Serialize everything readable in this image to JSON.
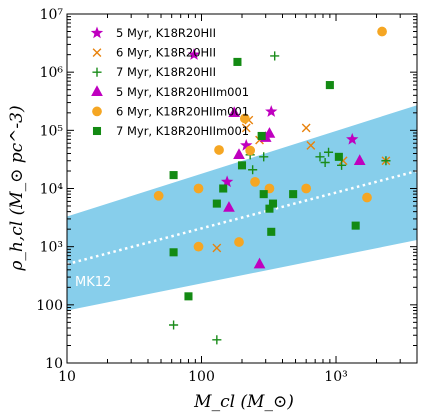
{
  "chart_data": {
    "type": "scatter",
    "xscale": "log",
    "yscale": "log",
    "xlim": [
      10,
      4000
    ],
    "ylim": [
      10,
      10000000
    ],
    "xlabel": "M_cl (M_⊙)",
    "ylabel": "ρ_h,cl (M_⊙ pc^-3)",
    "x_ticks": [
      {
        "value": 10,
        "label": "10"
      },
      {
        "value": 100,
        "label": "100"
      },
      {
        "value": 1000,
        "label": "10³"
      }
    ],
    "y_ticks": [
      {
        "value": 10,
        "label": "10"
      },
      {
        "value": 100,
        "label": "100"
      },
      {
        "value": 1000,
        "label": "10³"
      },
      {
        "value": 10000,
        "label": "10⁴"
      },
      {
        "value": 100000,
        "label": "10⁵"
      },
      {
        "value": 1000000,
        "label": "10⁶"
      },
      {
        "value": 10000000,
        "label": "10⁷"
      }
    ],
    "band": {
      "label": "MK12",
      "color": "#87ceeb",
      "lower": [
        [
          10,
          80
        ],
        [
          4000,
          1300
        ]
      ],
      "center": [
        [
          10,
          500
        ],
        [
          4000,
          20000
        ]
      ],
      "upper": [
        [
          10,
          3300
        ],
        [
          4000,
          270000
        ]
      ]
    },
    "legend_position": "top-left",
    "series": [
      {
        "name": "5 Myr, K18R20HII",
        "marker": "star",
        "color": "#bf00bf",
        "points": [
          [
            88,
            2000000
          ],
          [
            155,
            13000
          ],
          [
            215,
            55000
          ],
          [
            330,
            210000
          ],
          [
            1320,
            70000
          ]
        ]
      },
      {
        "name": "6 Myr, K18R20HII",
        "marker": "x",
        "color": "#e8820c",
        "points": [
          [
            130,
            950
          ],
          [
            215,
            110000
          ],
          [
            225,
            150000
          ],
          [
            270,
            68000
          ],
          [
            600,
            110000
          ],
          [
            650,
            55000
          ],
          [
            1130,
            30000
          ],
          [
            2350,
            30000
          ]
        ]
      },
      {
        "name": "7 Myr, K18R20HII",
        "marker": "plus",
        "color": "#1a8c1a",
        "points": [
          [
            62,
            45
          ],
          [
            130,
            25
          ],
          [
            230,
            38000
          ],
          [
            240,
            21000
          ],
          [
            290,
            35000
          ],
          [
            350,
            1900000
          ],
          [
            760,
            35000
          ],
          [
            830,
            28000
          ],
          [
            880,
            42000
          ],
          [
            1100,
            25000
          ],
          [
            2350,
            30000
          ]
        ]
      }
    ],
    "series_extra": [
      {
        "name": "5 Myr, K18R20HIIm001",
        "marker": "triangle",
        "color": "#bf00bf",
        "points": [
          [
            160,
            4700
          ],
          [
            175,
            200000
          ],
          [
            190,
            38000
          ],
          [
            270,
            500
          ],
          [
            300,
            75000
          ],
          [
            320,
            88000
          ],
          [
            1500,
            30000
          ]
        ]
      },
      {
        "name": "6 Myr, K18R20HIIm001",
        "marker": "circle",
        "color": "#f5a623",
        "points": [
          [
            48,
            7500
          ],
          [
            95,
            10000
          ],
          [
            95,
            1000
          ],
          [
            135,
            46000
          ],
          [
            190,
            1200
          ],
          [
            210,
            160000
          ],
          [
            230,
            45000
          ],
          [
            250,
            13000
          ],
          [
            320,
            10000
          ],
          [
            600,
            10000
          ],
          [
            1700,
            7000
          ],
          [
            2200,
            5000000
          ]
        ]
      },
      {
        "name": "7 Myr, K18R20HIIm001",
        "marker": "square",
        "color": "#138a13",
        "points": [
          [
            62,
            17000
          ],
          [
            80,
            140
          ],
          [
            130,
            5500
          ],
          [
            145,
            10000
          ],
          [
            185,
            1500000
          ],
          [
            200,
            25000
          ],
          [
            280,
            80000
          ],
          [
            290,
            8000
          ],
          [
            320,
            4500
          ],
          [
            340,
            5500
          ],
          [
            480,
            8000
          ],
          [
            900,
            600000
          ],
          [
            1050,
            35000
          ],
          [
            1400,
            2300
          ],
          [
            62,
            800
          ],
          [
            330,
            1800
          ]
        ]
      }
    ]
  }
}
